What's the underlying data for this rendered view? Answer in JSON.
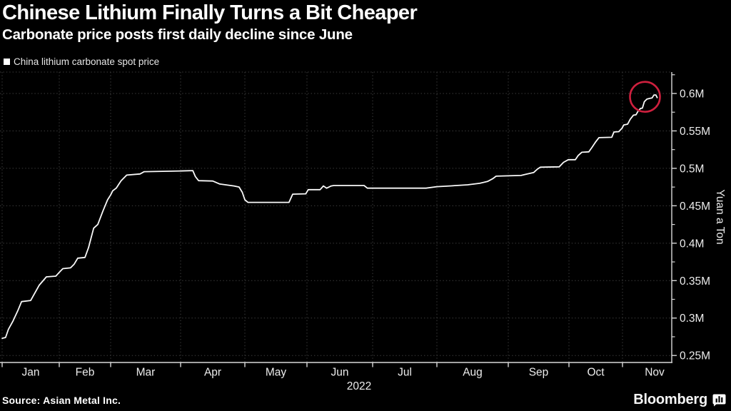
{
  "header": {
    "title": "Chinese Lithium Finally Turns a Bit Cheaper",
    "subtitle": "Carbonate price posts first daily decline since June"
  },
  "legend": {
    "label": "China lithium carbonate spot price",
    "swatch_color": "#ffffff"
  },
  "footer": {
    "source": "Source: Asian Metal Inc.",
    "brand": "Bloomberg"
  },
  "chart_data": {
    "type": "line",
    "title": "Chinese Lithium Finally Turns a Bit Cheaper",
    "subtitle": "Carbonate price posts first daily decline since June",
    "x_tick_labels": [
      "Jan",
      "Feb",
      "Mar",
      "Apr",
      "May",
      "Jun",
      "Jul",
      "Aug",
      "Sep",
      "Oct",
      "Nov"
    ],
    "year_label": "2022",
    "ylabel": "Yuan a Ton",
    "xlabel": "",
    "ylim": [
      0.25,
      0.6
    ],
    "y_ticks": [
      {
        "label": "0.6M",
        "value": 0.6
      },
      {
        "label": "0.55M",
        "value": 0.55
      },
      {
        "label": "0.5M",
        "value": 0.5
      },
      {
        "label": "0.45M",
        "value": 0.45
      },
      {
        "label": "0.4M",
        "value": 0.4
      },
      {
        "label": "0.35M",
        "value": 0.35
      },
      {
        "label": "0.3M",
        "value": 0.3
      },
      {
        "label": "0.25M",
        "value": 0.25
      }
    ],
    "y_minor_tick_values": [
      0.275,
      0.325,
      0.375,
      0.425,
      0.475,
      0.525,
      0.575,
      0.625
    ],
    "grid": "dotted",
    "legend_position": "top-left",
    "colors": {
      "line": "#fafafa",
      "grid": "#3e3e3e",
      "axis": "#d9d9d9",
      "annotation": "#ce203e",
      "background": "#000000"
    },
    "series": [
      {
        "name": "China lithium carbonate spot price",
        "unit": "M yuan per ton",
        "x_unit": "decimal month, 0 = Jan 1 2022",
        "points": [
          [
            0.0,
            0.273
          ],
          [
            0.06,
            0.274
          ],
          [
            0.11,
            0.285
          ],
          [
            0.19,
            0.296
          ],
          [
            0.275,
            0.31
          ],
          [
            0.34,
            0.322
          ],
          [
            0.5,
            0.3235
          ],
          [
            0.65,
            0.344
          ],
          [
            0.775,
            0.355
          ],
          [
            0.94,
            0.356
          ],
          [
            1.0,
            0.361
          ],
          [
            1.07,
            0.366
          ],
          [
            1.22,
            0.367
          ],
          [
            1.29,
            0.372
          ],
          [
            1.36,
            0.38
          ],
          [
            1.5,
            0.381
          ],
          [
            1.57,
            0.394
          ],
          [
            1.67,
            0.42
          ],
          [
            1.75,
            0.425
          ],
          [
            1.85,
            0.443
          ],
          [
            1.94,
            0.458
          ],
          [
            2.0,
            0.4645
          ],
          [
            2.03,
            0.47
          ],
          [
            2.08,
            0.4735
          ],
          [
            2.15,
            0.4835
          ],
          [
            2.23,
            0.491
          ],
          [
            2.42,
            0.4925
          ],
          [
            2.48,
            0.4955
          ],
          [
            3.0,
            0.4965
          ],
          [
            3.19,
            0.497
          ],
          [
            3.23,
            0.489
          ],
          [
            3.28,
            0.4835
          ],
          [
            3.5,
            0.483
          ],
          [
            3.61,
            0.479
          ],
          [
            3.83,
            0.4765
          ],
          [
            3.91,
            0.475
          ],
          [
            3.96,
            0.468
          ],
          [
            4.0,
            0.458
          ],
          [
            4.05,
            0.4545
          ],
          [
            4.71,
            0.4545
          ],
          [
            4.77,
            0.4655
          ],
          [
            4.98,
            0.466
          ],
          [
            5.02,
            0.4715
          ],
          [
            5.2,
            0.4715
          ],
          [
            5.25,
            0.4765
          ],
          [
            5.3,
            0.4735
          ],
          [
            5.37,
            0.4765
          ],
          [
            5.41,
            0.477
          ],
          [
            5.87,
            0.477
          ],
          [
            5.92,
            0.4735
          ],
          [
            6.83,
            0.4735
          ],
          [
            7.0,
            0.4755
          ],
          [
            7.18,
            0.4765
          ],
          [
            7.43,
            0.478
          ],
          [
            7.6,
            0.48
          ],
          [
            7.71,
            0.4825
          ],
          [
            7.78,
            0.486
          ],
          [
            7.83,
            0.4895
          ],
          [
            8.0,
            0.49
          ],
          [
            8.21,
            0.4905
          ],
          [
            8.29,
            0.492
          ],
          [
            8.42,
            0.4945
          ],
          [
            8.48,
            0.499
          ],
          [
            8.53,
            0.5015
          ],
          [
            8.84,
            0.502
          ],
          [
            8.91,
            0.508
          ],
          [
            8.99,
            0.5115
          ],
          [
            9.12,
            0.5115
          ],
          [
            9.17,
            0.517
          ],
          [
            9.24,
            0.5215
          ],
          [
            9.37,
            0.522
          ],
          [
            9.43,
            0.528
          ],
          [
            9.49,
            0.5345
          ],
          [
            9.56,
            0.541
          ],
          [
            9.8,
            0.5415
          ],
          [
            9.84,
            0.5485
          ],
          [
            9.93,
            0.549
          ],
          [
            9.99,
            0.5535
          ],
          [
            10.02,
            0.558
          ],
          [
            10.08,
            0.559
          ],
          [
            10.12,
            0.5655
          ],
          [
            10.17,
            0.571
          ],
          [
            10.21,
            0.5715
          ],
          [
            10.24,
            0.576
          ],
          [
            10.28,
            0.58
          ],
          [
            10.31,
            0.5805
          ],
          [
            10.34,
            0.589
          ],
          [
            10.38,
            0.5925
          ],
          [
            10.43,
            0.5935
          ],
          [
            10.46,
            0.594
          ],
          [
            10.49,
            0.598
          ],
          [
            10.52,
            0.598
          ],
          [
            10.54,
            0.5945
          ]
        ]
      }
    ],
    "annotation_circle": {
      "type": "circle",
      "t": 10.35,
      "value": 0.5955,
      "radius_px": 21,
      "color": "#ce203e"
    }
  }
}
